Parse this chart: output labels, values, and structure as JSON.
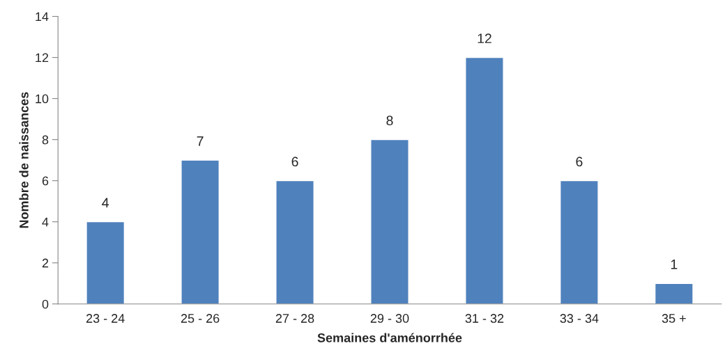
{
  "chart_data": {
    "type": "bar",
    "xlabel": "Semaines d'aménorrhée",
    "ylabel": "Nombre de naissances",
    "categories": [
      "23 - 24",
      "25 - 26",
      "27 - 28",
      "29 - 30",
      "31 - 32",
      "33 - 34",
      "35 +"
    ],
    "values": [
      4,
      7,
      6,
      8,
      12,
      6,
      1
    ],
    "color": "#4f81bd",
    "ylim": [
      0,
      14
    ],
    "yticks": [
      0,
      2,
      4,
      6,
      8,
      10,
      12,
      14
    ],
    "grid": false,
    "data_labels": true
  }
}
